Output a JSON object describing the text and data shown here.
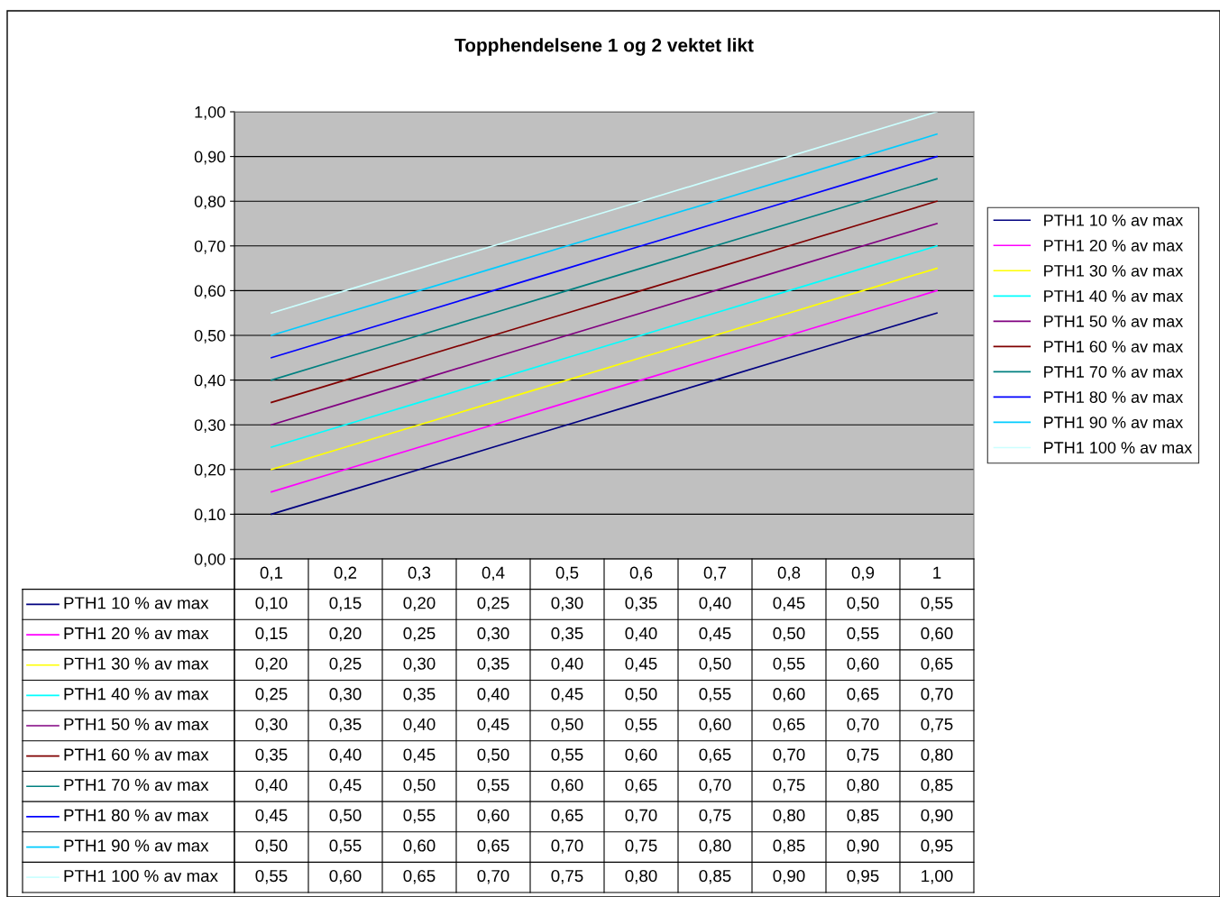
{
  "chart_data": {
    "type": "line",
    "title": "Topphendelsene 1 og 2 vektet likt",
    "categories": [
      "0,1",
      "0,2",
      "0,3",
      "0,4",
      "0,5",
      "0,6",
      "0,7",
      "0,8",
      "0,9",
      "1"
    ],
    "ylim": [
      0,
      1
    ],
    "yticks": [
      {
        "value": 0,
        "label": "0,00"
      },
      {
        "value": 0.1,
        "label": "0,10"
      },
      {
        "value": 0.2,
        "label": "0,20"
      },
      {
        "value": 0.3,
        "label": "0,30"
      },
      {
        "value": 0.4,
        "label": "0,40"
      },
      {
        "value": 0.5,
        "label": "0,50"
      },
      {
        "value": 0.6,
        "label": "0,60"
      },
      {
        "value": 0.7,
        "label": "0,70"
      },
      {
        "value": 0.8,
        "label": "0,80"
      },
      {
        "value": 0.9,
        "label": "0,90"
      },
      {
        "value": 1,
        "label": "1,00"
      }
    ],
    "grid": "y",
    "legend": "right",
    "marker": "none",
    "line_style": "solid",
    "series": [
      {
        "name": "PTH1 10 % av max",
        "color": "#000080",
        "values": [
          0.1,
          0.15,
          0.2,
          0.25,
          0.3,
          0.35,
          0.4,
          0.45,
          0.5,
          0.55
        ],
        "value_labels": [
          "0,10",
          "0,15",
          "0,20",
          "0,25",
          "0,30",
          "0,35",
          "0,40",
          "0,45",
          "0,50",
          "0,55"
        ]
      },
      {
        "name": "PTH1 20 % av max",
        "color": "#ff00ff",
        "values": [
          0.15,
          0.2,
          0.25,
          0.3,
          0.35,
          0.4,
          0.45,
          0.5,
          0.55,
          0.6
        ],
        "value_labels": [
          "0,15",
          "0,20",
          "0,25",
          "0,30",
          "0,35",
          "0,40",
          "0,45",
          "0,50",
          "0,55",
          "0,60"
        ]
      },
      {
        "name": "PTH1 30 % av max",
        "color": "#ffff00",
        "values": [
          0.2,
          0.25,
          0.3,
          0.35,
          0.4,
          0.45,
          0.5,
          0.55,
          0.6,
          0.65
        ],
        "value_labels": [
          "0,20",
          "0,25",
          "0,30",
          "0,35",
          "0,40",
          "0,45",
          "0,50",
          "0,55",
          "0,60",
          "0,65"
        ]
      },
      {
        "name": "PTH1 40 % av max",
        "color": "#00ffff",
        "values": [
          0.25,
          0.3,
          0.35,
          0.4,
          0.45,
          0.5,
          0.55,
          0.6,
          0.65,
          0.7
        ],
        "value_labels": [
          "0,25",
          "0,30",
          "0,35",
          "0,40",
          "0,45",
          "0,50",
          "0,55",
          "0,60",
          "0,65",
          "0,70"
        ]
      },
      {
        "name": "PTH1 50 % av max",
        "color": "#800080",
        "values": [
          0.3,
          0.35,
          0.4,
          0.45,
          0.5,
          0.55,
          0.6,
          0.65,
          0.7,
          0.75
        ],
        "value_labels": [
          "0,30",
          "0,35",
          "0,40",
          "0,45",
          "0,50",
          "0,55",
          "0,60",
          "0,65",
          "0,70",
          "0,75"
        ]
      },
      {
        "name": "PTH1 60 % av max",
        "color": "#800000",
        "values": [
          0.35,
          0.4,
          0.45,
          0.5,
          0.55,
          0.6,
          0.65,
          0.7,
          0.75,
          0.8
        ],
        "value_labels": [
          "0,35",
          "0,40",
          "0,45",
          "0,50",
          "0,55",
          "0,60",
          "0,65",
          "0,70",
          "0,75",
          "0,80"
        ]
      },
      {
        "name": "PTH1 70 % av max",
        "color": "#008080",
        "values": [
          0.4,
          0.45,
          0.5,
          0.55,
          0.6,
          0.65,
          0.7,
          0.75,
          0.8,
          0.85
        ],
        "value_labels": [
          "0,40",
          "0,45",
          "0,50",
          "0,55",
          "0,60",
          "0,65",
          "0,70",
          "0,75",
          "0,80",
          "0,85"
        ]
      },
      {
        "name": "PTH1 80 % av max",
        "color": "#0000ff",
        "values": [
          0.45,
          0.5,
          0.55,
          0.6,
          0.65,
          0.7,
          0.75,
          0.8,
          0.85,
          0.9
        ],
        "value_labels": [
          "0,45",
          "0,50",
          "0,55",
          "0,60",
          "0,65",
          "0,70",
          "0,75",
          "0,80",
          "0,85",
          "0,90"
        ]
      },
      {
        "name": "PTH1 90 % av max",
        "color": "#00ccff",
        "values": [
          0.5,
          0.55,
          0.6,
          0.65,
          0.7,
          0.75,
          0.8,
          0.85,
          0.9,
          0.95
        ],
        "value_labels": [
          "0,50",
          "0,55",
          "0,60",
          "0,65",
          "0,70",
          "0,75",
          "0,80",
          "0,85",
          "0,90",
          "0,95"
        ]
      },
      {
        "name": "PTH1 100 % av max",
        "color": "#ccffff",
        "values": [
          0.55,
          0.6,
          0.65,
          0.7,
          0.75,
          0.8,
          0.85,
          0.9,
          0.95,
          1.0
        ],
        "value_labels": [
          "0,55",
          "0,60",
          "0,65",
          "0,70",
          "0,75",
          "0,80",
          "0,85",
          "0,90",
          "0,95",
          "1,00"
        ]
      }
    ]
  }
}
